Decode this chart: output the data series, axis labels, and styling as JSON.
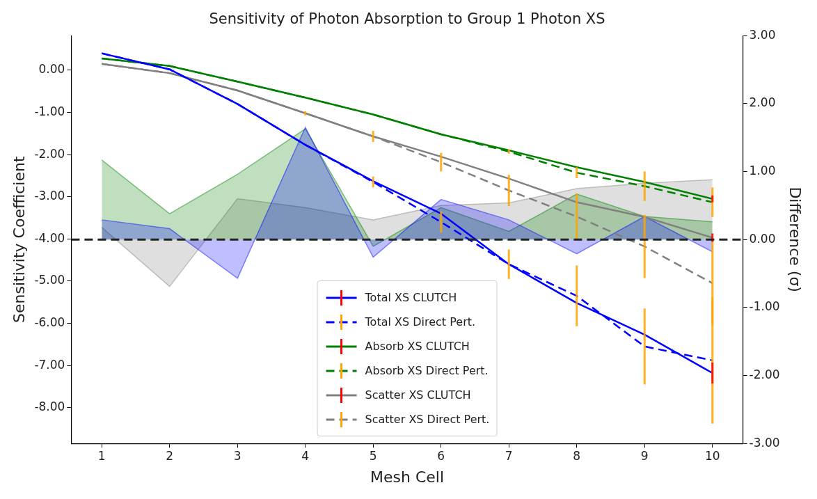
{
  "chart_data": {
    "type": "line",
    "title": "Sensitivity of Photon Absorption to Group 1 Photon XS",
    "xlabel": "Mesh Cell",
    "ylabel": "Sensitivity Coefficient",
    "y2label": "Difference (σ)",
    "x": [
      1,
      2,
      3,
      4,
      5,
      6,
      7,
      8,
      9,
      10
    ],
    "xlim": [
      0.55,
      10.45
    ],
    "xticks": [
      1,
      2,
      3,
      4,
      5,
      6,
      7,
      8,
      9,
      10
    ],
    "ylim": [
      -8.85,
      0.82
    ],
    "yticks": [
      {
        "value": 0,
        "label": "0.00"
      },
      {
        "value": -1,
        "label": "-1.00"
      },
      {
        "value": -2,
        "label": "-2.00"
      },
      {
        "value": -3,
        "label": "-3.00"
      },
      {
        "value": -4,
        "label": "-4.00"
      },
      {
        "value": -5,
        "label": "-5.00"
      },
      {
        "value": -6,
        "label": "-6.00"
      },
      {
        "value": -7,
        "label": "-7.00"
      },
      {
        "value": -8,
        "label": "-8.00"
      }
    ],
    "y2lim": [
      -3,
      3
    ],
    "y2ticks": [
      {
        "value": -3,
        "label": "-3.00"
      },
      {
        "value": -2,
        "label": "-2.00"
      },
      {
        "value": -1,
        "label": "-1.00"
      },
      {
        "value": 0,
        "label": "0.00"
      },
      {
        "value": 1,
        "label": "1.00"
      },
      {
        "value": 2,
        "label": "2.00"
      },
      {
        "value": 3,
        "label": "3.00"
      }
    ],
    "series": [
      {
        "type": "area",
        "axis": "y2",
        "color": "#0000ff",
        "values": [
          0.29,
          0.16,
          -0.57,
          1.65,
          -0.26,
          0.59,
          0.29,
          -0.21,
          0.34,
          -0.18
        ]
      },
      {
        "type": "area",
        "axis": "y2",
        "color": "#008000",
        "values": [
          1.17,
          0.38,
          0.96,
          1.63,
          -0.1,
          0.47,
          0.12,
          0.67,
          0.34,
          0.26
        ]
      },
      {
        "type": "area",
        "axis": "y2",
        "color": "#808080",
        "values": [
          0.18,
          -0.69,
          0.6,
          0.47,
          0.29,
          0.5,
          0.54,
          0.75,
          0.83,
          0.88
        ]
      },
      {
        "name": "Total XS CLUTCH",
        "color": "#0000ff",
        "line_style": "solid",
        "values": [
          0.4,
          0.02,
          -0.8,
          -1.77,
          -2.63,
          -3.4,
          -4.6,
          -5.52,
          -6.27,
          -7.18
        ],
        "errors": [
          null,
          null,
          null,
          null,
          null,
          null,
          null,
          null,
          null,
          0.25
        ]
      },
      {
        "name": "Total XS Direct Pert.",
        "color": "#0000ff",
        "line_style": "dashed",
        "values": [
          0.4,
          0.02,
          -0.8,
          -1.77,
          -2.65,
          -3.6,
          -4.6,
          -5.35,
          -6.55,
          -6.88
        ],
        "errors": [
          null,
          null,
          null,
          null,
          0.13,
          0.25,
          0.35,
          0.72,
          0.9,
          1.5
        ]
      },
      {
        "name": "Absorb XS CLUTCH",
        "color": "#008000",
        "line_style": "solid",
        "values": [
          0.28,
          0.1,
          -0.27,
          -0.65,
          -1.05,
          -1.52,
          -1.9,
          -2.3,
          -2.65,
          -3.05
        ],
        "errors": [
          null,
          null,
          null,
          null,
          null,
          null,
          null,
          null,
          null,
          0.08
        ]
      },
      {
        "name": "Absorb XS Direct Pert.",
        "color": "#008000",
        "line_style": "dashed",
        "values": [
          0.28,
          0.1,
          -0.27,
          -0.65,
          -1.05,
          -1.52,
          -1.93,
          -2.43,
          -2.75,
          -3.13
        ],
        "errors": [
          null,
          null,
          null,
          null,
          null,
          null,
          0.05,
          0.13,
          0.35,
          0.35
        ]
      },
      {
        "name": "Scatter XS CLUTCH",
        "color": "#808080",
        "line_style": "solid",
        "values": [
          0.15,
          -0.07,
          -0.48,
          -1.02,
          -1.57,
          -2.05,
          -2.57,
          -3.13,
          -3.48,
          -3.97
        ],
        "errors": [
          null,
          null,
          null,
          null,
          null,
          null,
          null,
          null,
          null,
          0.1
        ]
      },
      {
        "name": "Scatter XS Direct Pert.",
        "color": "#808080",
        "line_style": "dashed",
        "values": [
          0.15,
          -0.07,
          -0.48,
          -1.02,
          -1.57,
          -2.18,
          -2.85,
          -3.47,
          -4.18,
          -5.05
        ],
        "errors": [
          null,
          null,
          null,
          0.05,
          0.13,
          0.22,
          0.37,
          0.55,
          0.75,
          1.0
        ]
      }
    ],
    "ref_lines": [
      {
        "axis": "y2",
        "value": 0,
        "color": "#222222",
        "line_style": "dashed"
      }
    ],
    "grid": false,
    "legend": "bottom",
    "marker": "none"
  }
}
